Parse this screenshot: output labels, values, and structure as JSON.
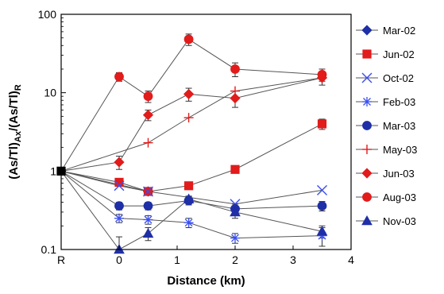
{
  "chart_data": {
    "type": "scatter",
    "xlabel": "Distance (km)",
    "ylabel_main": "(As/Tl)",
    "ylabel_sub1": "Ax",
    "ylabel_mid": "/(As/Tl)",
    "ylabel_sub2": "R",
    "y_scale": "log",
    "ylim": [
      0.1,
      100
    ],
    "xlim": [
      -1,
      4
    ],
    "x_ticks": [
      {
        "value": -1,
        "label": "R"
      },
      {
        "value": 0,
        "label": "0"
      },
      {
        "value": 1,
        "label": "1"
      },
      {
        "value": 2,
        "label": "2"
      },
      {
        "value": 3,
        "label": "3"
      },
      {
        "value": 4,
        "label": "4"
      }
    ],
    "y_ticks": [
      {
        "value": 0.1,
        "label": "0.1"
      },
      {
        "value": 1,
        "label": "1"
      },
      {
        "value": 10,
        "label": "10"
      },
      {
        "value": 100,
        "label": "100"
      }
    ],
    "legend_position": "right",
    "series": [
      {
        "name": "Mar-02",
        "marker": "diamond",
        "color": "#1f2fa8",
        "points": [
          [
            -1,
            1
          ],
          [
            0.5,
            0.55
          ]
        ]
      },
      {
        "name": "Jun-02",
        "marker": "square",
        "color": "#e21b1b",
        "points": [
          [
            -1,
            1
          ],
          [
            0,
            0.72
          ],
          [
            0.5,
            0.55
          ],
          [
            1.2,
            0.65
          ],
          [
            2,
            1.05
          ],
          [
            3.5,
            4.0
          ]
        ],
        "errors": [
          [
            0,
            0
          ],
          [
            0.05,
            0.05
          ],
          [
            0.05,
            0.05
          ],
          [
            0.05,
            0.05
          ],
          [
            0.08,
            0.08
          ],
          [
            0.6,
            0.6
          ]
        ]
      },
      {
        "name": "Oct-02",
        "marker": "x",
        "color": "#3a4ff0",
        "points": [
          [
            -1,
            1
          ],
          [
            0,
            0.65
          ],
          [
            0.5,
            0.55
          ],
          [
            2,
            0.38
          ],
          [
            3.5,
            0.57
          ]
        ]
      },
      {
        "name": "Feb-03",
        "marker": "asterisk",
        "color": "#3a4ff0",
        "points": [
          [
            -1,
            1
          ],
          [
            0,
            0.25
          ],
          [
            0.5,
            0.24
          ],
          [
            1.2,
            0.22
          ],
          [
            2,
            0.14
          ],
          [
            3.5,
            0.15
          ]
        ],
        "errors": [
          [
            0,
            0
          ],
          [
            0.03,
            0.03
          ],
          [
            0.03,
            0.03
          ],
          [
            0.03,
            0.03
          ],
          [
            0.02,
            0.02
          ],
          [
            0.04,
            0.04
          ]
        ]
      },
      {
        "name": "Mar-03",
        "marker": "circle",
        "color": "#1f2fa8",
        "points": [
          [
            -1,
            1
          ],
          [
            0,
            0.36
          ],
          [
            0.5,
            0.36
          ],
          [
            1.2,
            0.42
          ],
          [
            2,
            0.33
          ],
          [
            3.5,
            0.36
          ]
        ],
        "errors": [
          [
            0,
            0
          ],
          [
            0.04,
            0.04
          ],
          [
            0.04,
            0.04
          ],
          [
            0.05,
            0.05
          ],
          [
            0.05,
            0.05
          ],
          [
            0.05,
            0.05
          ]
        ]
      },
      {
        "name": "May-03",
        "marker": "plus",
        "color": "#e21b1b",
        "points": [
          [
            -1,
            1
          ],
          [
            0.5,
            2.3
          ],
          [
            1.2,
            4.8
          ],
          [
            2,
            10.5
          ],
          [
            3.5,
            15.5
          ]
        ]
      },
      {
        "name": "Jun-03",
        "marker": "diamond",
        "color": "#e21b1b",
        "points": [
          [
            -1,
            1
          ],
          [
            0,
            1.3
          ],
          [
            0.5,
            5.2
          ],
          [
            1.2,
            9.6
          ],
          [
            2,
            8.5
          ],
          [
            3.5,
            15.5
          ]
        ],
        "errors": [
          [
            0,
            0
          ],
          [
            0.25,
            0.25
          ],
          [
            0.8,
            0.8
          ],
          [
            1.8,
            1.8
          ],
          [
            2.0,
            2.0
          ],
          [
            3.0,
            3.0
          ]
        ]
      },
      {
        "name": "Aug-03",
        "marker": "circle",
        "color": "#e21b1b",
        "points": [
          [
            -1,
            1
          ],
          [
            0,
            16
          ],
          [
            0.5,
            9
          ],
          [
            1.2,
            48
          ],
          [
            2,
            20
          ],
          [
            3.5,
            17
          ]
        ],
        "errors": [
          [
            0,
            0
          ],
          [
            2,
            2
          ],
          [
            1.5,
            1.5
          ],
          [
            8,
            8
          ],
          [
            4,
            4
          ],
          [
            3,
            3
          ]
        ]
      },
      {
        "name": "Nov-03",
        "marker": "triangle",
        "color": "#1f2fa8",
        "points": [
          [
            -1,
            1
          ],
          [
            0,
            0.1
          ],
          [
            0.5,
            0.16
          ],
          [
            1.2,
            0.44
          ],
          [
            2,
            0.3
          ],
          [
            3.5,
            0.17
          ]
        ],
        "errors": [
          [
            0,
            0
          ],
          [
            0.02,
            0.045
          ],
          [
            0.03,
            0.03
          ],
          [
            0.04,
            0.04
          ],
          [
            0.05,
            0.05
          ],
          [
            0.03,
            0.03
          ]
        ]
      }
    ]
  }
}
